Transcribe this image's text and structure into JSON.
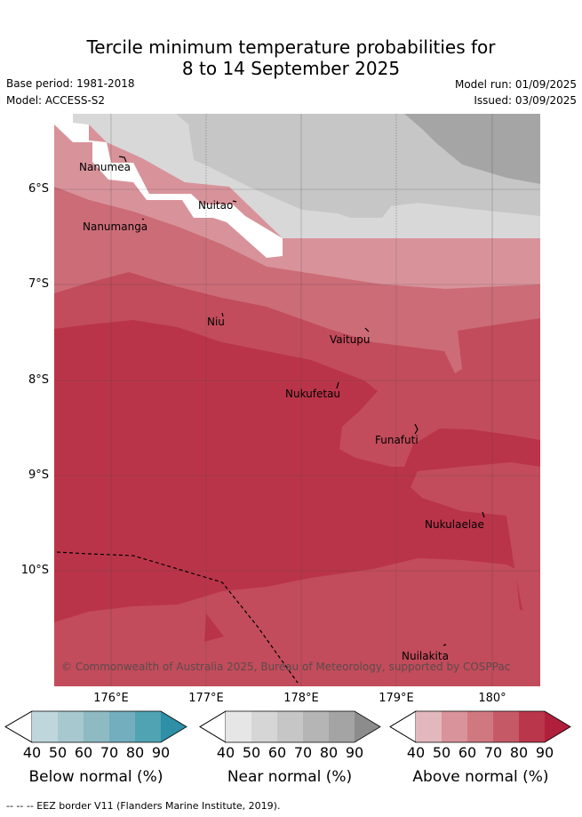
{
  "title_line1": "Tercile minimum temperature probabilities for",
  "title_line2": "8 to 14 September 2025",
  "base_period": "Base period: 1981-2018",
  "model": "Model: ACCESS-S2",
  "model_run": "Model run: 01/09/2025",
  "issued": "Issued: 03/09/2025",
  "copyright": "© Commonwealth of Australia 2025, Bureau of Meteorology, supported by COSPPac",
  "footnote": "-- -- -- EEZ border V11 (Flanders Marine Institute, 2019).",
  "lat_labels": [
    "6°S",
    "7°S",
    "8°S",
    "9°S",
    "10°S"
  ],
  "lon_labels": [
    "176°E",
    "177°E",
    "178°E",
    "179°E",
    "180°"
  ],
  "places": [
    "Nanumea",
    "Nuitao",
    "Nanumanga",
    "Niu",
    "Vaitupu",
    "Nukufetau",
    "Funafuti",
    "Nukulaelae",
    "Nuilakita"
  ],
  "legend": {
    "ticks": [
      "40",
      "50",
      "60",
      "70",
      "80",
      "90"
    ],
    "below": {
      "title": "Below normal (%)",
      "colors": [
        "#bfd6dd",
        "#a7c8ce",
        "#8ebac4",
        "#72aebd",
        "#4fa3b3",
        "#2e8fa6"
      ]
    },
    "near": {
      "title": "Near normal (%)",
      "colors": [
        "#e6e6e6",
        "#d6d6d6",
        "#c6c6c6",
        "#b5b5b5",
        "#a4a4a4",
        "#8c8c8c"
      ]
    },
    "above": {
      "title": "Above normal (%)",
      "colors": [
        "#e2b8be",
        "#d9939a",
        "#d07880",
        "#c55a66",
        "#ba364a",
        "#b01f3c"
      ]
    }
  },
  "colors": {
    "near_60": "#d8d8d8",
    "near_70": "#c6c6c6",
    "near_80": "#a5a5a5",
    "above_50": "#d8939a",
    "above_60": "#cc6c77",
    "above_70": "#c24c5b",
    "above_80": "#ba3449",
    "nodata": "#ffffff"
  }
}
